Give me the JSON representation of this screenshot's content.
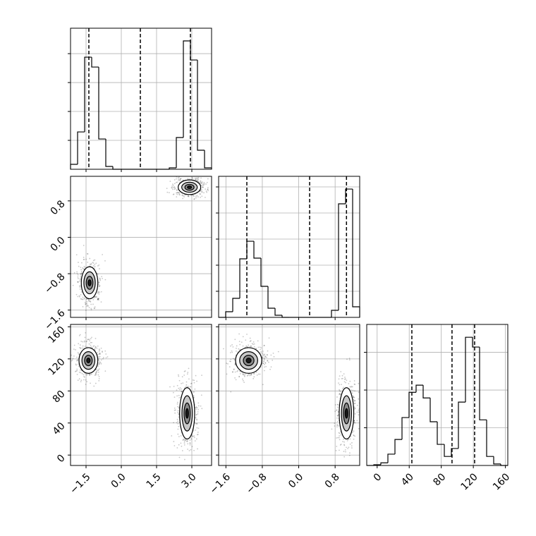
{
  "chart_data": {
    "type": "corner",
    "grid": true,
    "params": [
      {
        "lim": [
          -2.16,
          3.84
        ],
        "ticks": [
          {
            "value": -1.5,
            "label": "−1.5"
          },
          {
            "value": 0,
            "label": "0.0"
          },
          1.5,
          {
            "value": 3,
            "label": "3.0"
          }
        ]
      },
      {
        "lim": [
          -1.76,
          1.34
        ],
        "ticks": [
          {
            "value": -1.6,
            "label": "−1.6"
          },
          {
            "value": -0.8,
            "label": "−0.8"
          },
          {
            "value": 0,
            "label": "0.0"
          },
          0.8
        ]
      },
      {
        "lim": [
          -13,
          163
        ],
        "ticks": [
          0,
          40,
          80,
          120,
          160
        ]
      }
    ],
    "histograms": [
      {
        "bins": [
          -2.16,
          -1.86,
          -1.56,
          -1.26,
          -0.96,
          -0.66,
          -0.36,
          -0.06,
          0.24,
          0.54,
          0.84,
          1.14,
          1.44,
          1.74,
          2.04,
          2.34,
          2.64,
          2.94,
          3.24,
          3.54,
          3.84
        ],
        "counts": [
          85,
          646,
          1939,
          1768,
          524,
          49,
          0,
          0,
          0,
          0,
          0,
          0,
          0,
          0,
          24,
          549,
          2220,
          1890,
          329,
          24
        ],
        "ylim": [
          0,
          2440
        ],
        "yticks": [
          500,
          1000,
          1500,
          2000
        ],
        "quantiles": [
          -1.38,
          0.81,
          2.94
        ]
      },
      {
        "bins": [
          -1.76,
          -1.605,
          -1.45,
          -1.295,
          -1.14,
          -0.985,
          -0.83,
          -0.675,
          -0.52,
          -0.365,
          -0.21,
          -0.055,
          0.1,
          0.255,
          0.41,
          0.565,
          0.72,
          0.875,
          1.03,
          1.185,
          1.34
        ],
        "counts": [
          0,
          108,
          365,
          1122,
          1459,
          1135,
          595,
          176,
          41,
          0,
          0,
          0,
          0,
          0,
          0,
          0,
          135,
          2176,
          2459,
          203
        ],
        "ylim": [
          0,
          2703
        ],
        "yticks": [
          500,
          1000,
          1500,
          2000,
          2500
        ],
        "quantiles": [
          -1.14,
          0.24,
          1.05
        ]
      },
      {
        "bins": [
          -13,
          -4.2,
          4.6,
          13.4,
          22.2,
          31,
          39.8,
          48.6,
          57.4,
          66.2,
          75,
          83.8,
          92.6,
          101.4,
          110.2,
          119,
          127.8,
          136.6,
          145.4,
          154.2,
          163
        ],
        "counts": [
          0,
          2,
          7,
          30,
          69,
          127,
          194,
          213,
          179,
          116,
          56,
          24,
          45,
          168,
          340,
          314,
          121,
          24,
          4,
          0
        ],
        "ylim": [
          0,
          374
        ],
        "yticks": [
          100,
          200,
          300
        ],
        "quantiles": [
          43.3,
          93.4,
          121.6
        ]
      }
    ],
    "scatters": [
      [
        {
          "x": -1.35,
          "y": -1.0,
          "sx": 0.22,
          "sy": 0.22
        },
        {
          "x": 2.9,
          "y": 1.1,
          "sx": 0.3,
          "sy": 0.1
        }
      ],
      [
        {
          "x": -1.4,
          "y": 118,
          "sx": 0.25,
          "sy": 10
        },
        {
          "x": 2.8,
          "y": 52,
          "sx": 0.2,
          "sy": 20
        }
      ],
      [
        {
          "x": -1.1,
          "y": 118,
          "sx": 0.18,
          "sy": 10
        },
        {
          "x": 1.05,
          "y": 52,
          "sx": 0.1,
          "sy": 20
        }
      ]
    ]
  }
}
